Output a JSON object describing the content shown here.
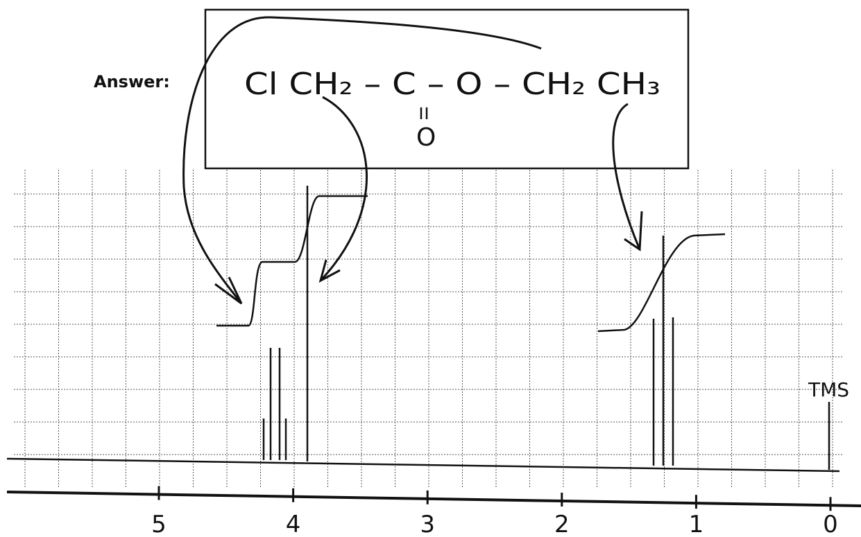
{
  "answer_label": "Answer:",
  "formula": {
    "main": "Cl CH₂ – C – O – CH₂ CH₃",
    "carbonyl_oxygen": "O"
  },
  "spectrum": {
    "peak_label": "TMS",
    "axis_labels": [
      "5",
      "4",
      "3",
      "2",
      "1",
      "0"
    ]
  }
}
